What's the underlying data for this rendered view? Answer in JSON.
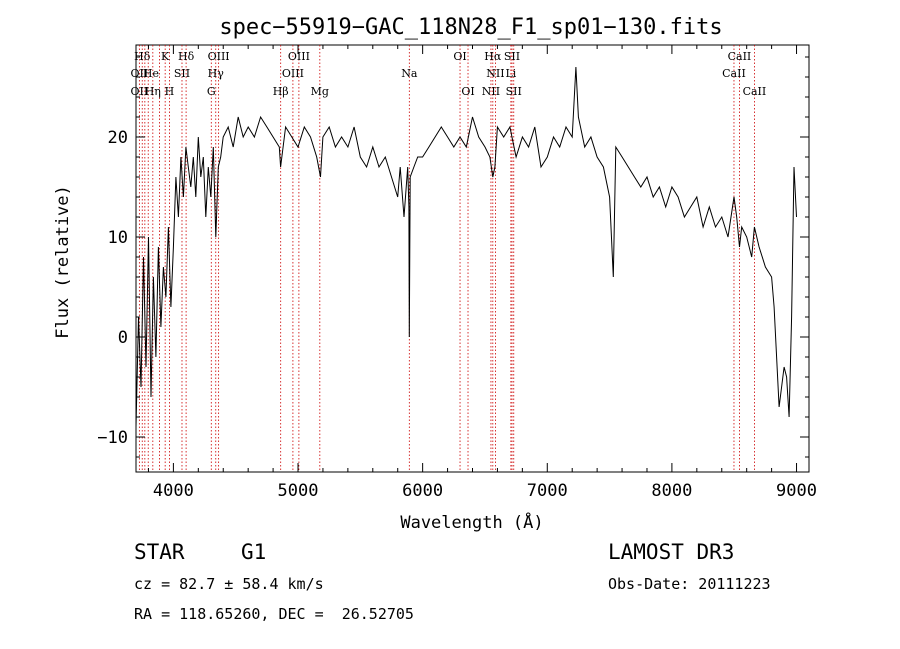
{
  "chart_data": {
    "type": "line",
    "title": "spec−55919−GAC_118N28_F1_sp01−130.fits",
    "xlabel": "Wavelength (Å)",
    "ylabel": "Flux (relative)",
    "xlim": [
      3700,
      9100
    ],
    "ylim": [
      -13.5,
      29.2
    ],
    "xticks": [
      4000,
      5000,
      6000,
      7000,
      8000,
      9000
    ],
    "yticks": [
      -10,
      0,
      10,
      20
    ],
    "ytick_labels": [
      "−10",
      "0",
      "10",
      "20"
    ],
    "series": [
      {
        "name": "spectrum",
        "x": [
          3700,
          3720,
          3740,
          3760,
          3780,
          3800,
          3820,
          3840,
          3860,
          3880,
          3900,
          3920,
          3940,
          3960,
          3980,
          4000,
          4020,
          4040,
          4060,
          4080,
          4100,
          4120,
          4140,
          4160,
          4180,
          4200,
          4220,
          4240,
          4260,
          4280,
          4300,
          4320,
          4340,
          4360,
          4380,
          4400,
          4440,
          4480,
          4520,
          4560,
          4600,
          4650,
          4700,
          4750,
          4800,
          4850,
          4860,
          4900,
          4950,
          5000,
          5050,
          5100,
          5150,
          5180,
          5200,
          5250,
          5300,
          5350,
          5400,
          5450,
          5500,
          5550,
          5600,
          5650,
          5700,
          5750,
          5800,
          5820,
          5850,
          5880,
          5890,
          5893,
          5900,
          5930,
          5960,
          6000,
          6050,
          6100,
          6150,
          6200,
          6250,
          6300,
          6350,
          6400,
          6450,
          6500,
          6540,
          6563,
          6580,
          6600,
          6650,
          6700,
          6750,
          6800,
          6850,
          6900,
          6950,
          7000,
          7050,
          7100,
          7150,
          7200,
          7230,
          7250,
          7300,
          7350,
          7400,
          7450,
          7500,
          7530,
          7550,
          7600,
          7650,
          7700,
          7750,
          7800,
          7850,
          7900,
          7950,
          8000,
          8050,
          8100,
          8150,
          8200,
          8250,
          8300,
          8350,
          8400,
          8450,
          8498,
          8520,
          8542,
          8560,
          8600,
          8640,
          8662,
          8700,
          8750,
          8800,
          8820,
          8840,
          8860,
          8880,
          8900,
          8920,
          8940,
          8960,
          8980,
          9000
        ],
        "y": [
          -9,
          2,
          -5,
          8,
          -3,
          10,
          -6,
          6,
          -2,
          9,
          1,
          7,
          4,
          11,
          3,
          9,
          16,
          12,
          18,
          14,
          19,
          17,
          15,
          18,
          14,
          20,
          16,
          18,
          12,
          17,
          14,
          19,
          10,
          17,
          18,
          20,
          21,
          19,
          22,
          20,
          21,
          20,
          22,
          21,
          20,
          19,
          17,
          21,
          20,
          19,
          21,
          20,
          18,
          16,
          20,
          21,
          19,
          20,
          19,
          21,
          18,
          17,
          19,
          17,
          18,
          16,
          14,
          17,
          12,
          17,
          13,
          0,
          16,
          17,
          18,
          18,
          19,
          20,
          21,
          20,
          19,
          20,
          19,
          22,
          20,
          19,
          18,
          16,
          17,
          21,
          20,
          21,
          18,
          20,
          19,
          21,
          17,
          18,
          20,
          19,
          21,
          20,
          27,
          22,
          19,
          20,
          18,
          17,
          14,
          6,
          19,
          18,
          17,
          16,
          15,
          16,
          14,
          15,
          13,
          15,
          14,
          12,
          13,
          14,
          11,
          13,
          11,
          12,
          10,
          14,
          12,
          9,
          11,
          10,
          8,
          11,
          9,
          7,
          6,
          3,
          -2,
          -7,
          -5,
          -3,
          -4,
          -8,
          2,
          17,
          12
        ]
      }
    ],
    "line_marks": [
      {
        "label": "Hδ",
        "wavelength": 3750,
        "row": 1
      },
      {
        "label": "K",
        "wavelength": 3934,
        "row": 1
      },
      {
        "label": "Hδ",
        "wavelength": 4102,
        "row": 1
      },
      {
        "label": "OIII",
        "wavelength": 4363,
        "row": 1
      },
      {
        "label": "OIII",
        "wavelength": 5007,
        "row": 1
      },
      {
        "label": "OI",
        "wavelength": 6300,
        "row": 1
      },
      {
        "label": "Hα",
        "wavelength": 6563,
        "row": 1
      },
      {
        "label": "SII",
        "wavelength": 6717,
        "row": 1
      },
      {
        "label": "CaII",
        "wavelength": 8542,
        "row": 1
      },
      {
        "label": "OII",
        "wavelength": 3727,
        "row": 2
      },
      {
        "label": "He",
        "wavelength": 3820,
        "row": 2
      },
      {
        "label": "SII",
        "wavelength": 4069,
        "row": 2
      },
      {
        "label": "Hγ",
        "wavelength": 4340,
        "row": 2
      },
      {
        "label": "OIII",
        "wavelength": 4959,
        "row": 2
      },
      {
        "label": "Na",
        "wavelength": 5893,
        "row": 2
      },
      {
        "label": "NII",
        "wavelength": 6584,
        "row": 2
      },
      {
        "label": "Li",
        "wavelength": 6708,
        "row": 2
      },
      {
        "label": "CaII",
        "wavelength": 8498,
        "row": 2
      },
      {
        "label": "OII",
        "wavelength": 3727,
        "row": 3
      },
      {
        "label": "Hη",
        "wavelength": 3835,
        "row": 3
      },
      {
        "label": "H",
        "wavelength": 3968,
        "row": 3
      },
      {
        "label": "G",
        "wavelength": 4304,
        "row": 3
      },
      {
        "label": "Hβ",
        "wavelength": 4861,
        "row": 3
      },
      {
        "label": "Mg",
        "wavelength": 5175,
        "row": 3
      },
      {
        "label": "OI",
        "wavelength": 6364,
        "row": 3
      },
      {
        "label": "NII",
        "wavelength": 6548,
        "row": 3
      },
      {
        "label": "SII",
        "wavelength": 6731,
        "row": 3
      },
      {
        "label": "CaII",
        "wavelength": 8662,
        "row": 3
      }
    ],
    "line_wavelengths": [
      3727,
      3750,
      3771,
      3798,
      3835,
      3889,
      3934,
      3968,
      4069,
      4102,
      4304,
      4340,
      4363,
      4861,
      4959,
      5007,
      5175,
      5893,
      6300,
      6364,
      6548,
      6563,
      6584,
      6708,
      6717,
      6731,
      8498,
      8542,
      8662
    ]
  },
  "info": {
    "object_class": "STAR",
    "subclass": "G1",
    "survey": "LAMOST DR3",
    "cz": "cz = 82.7 ± 58.4 km/s",
    "obs_date": "Obs-Date: 20111223",
    "coords": "RA = 118.65260, DEC =  26.52705"
  },
  "colors": {
    "spectrum": "#000000",
    "line_marker": "#cc0000",
    "background": "#ffffff"
  }
}
